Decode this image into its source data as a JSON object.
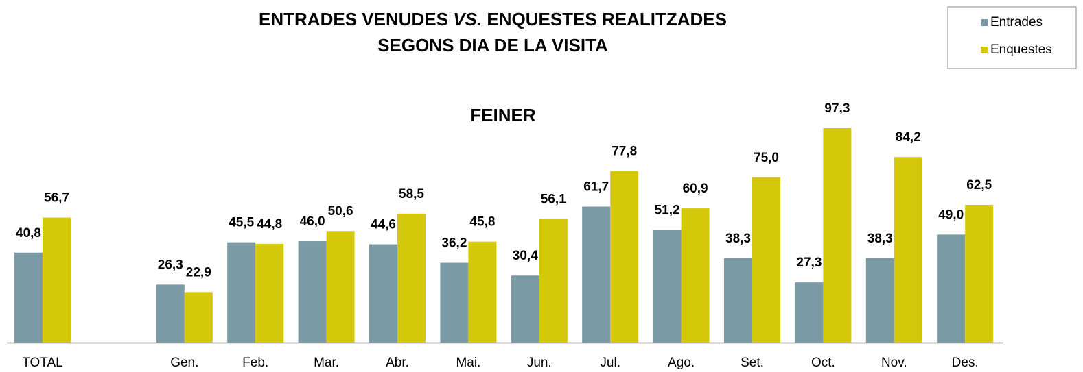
{
  "chart_data": {
    "type": "bar",
    "title": [
      "ENTRADES VENUDES",
      "VS.",
      "ENQUESTES REALITZADES",
      "SEGONS DIA DE LA VISITA"
    ],
    "subtitle": "FEINER",
    "categories": [
      "TOTAL",
      null,
      "Gen.",
      "Feb.",
      "Mar.",
      "Abr.",
      "Mai.",
      "Jun.",
      "Jul.",
      "Ago.",
      "Set.",
      "Oct.",
      "Nov.",
      "Des."
    ],
    "series": [
      {
        "name": "Entrades",
        "color": "#7a9ba6",
        "values": [
          40.8,
          null,
          26.3,
          45.5,
          46.0,
          44.6,
          36.2,
          30.4,
          61.7,
          51.2,
          38.3,
          27.3,
          38.3,
          49.0
        ],
        "value_labels": [
          "40,8",
          null,
          "26,3",
          "45,5",
          "46,0",
          "44,6",
          "36,2",
          "30,4",
          "61,7",
          "51,2",
          "38,3",
          "27,3",
          "38,3",
          "49,0"
        ]
      },
      {
        "name": "Enquestes",
        "color": "#d4c80a",
        "values": [
          56.7,
          null,
          22.9,
          44.8,
          50.6,
          58.5,
          45.8,
          56.1,
          77.8,
          60.9,
          75.0,
          97.3,
          84.2,
          62.5
        ],
        "value_labels": [
          "56,7",
          null,
          "22,9",
          "44,8",
          "50,6",
          "58,5",
          "45,8",
          "56,1",
          "77,8",
          "60,9",
          "75,0",
          "97,3",
          "84,2",
          "62,5"
        ]
      }
    ],
    "legend": "top-right"
  }
}
